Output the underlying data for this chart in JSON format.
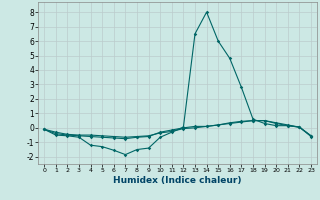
{
  "title": "",
  "xlabel": "Humidex (Indice chaleur)",
  "background_color": "#cce8e4",
  "grid_color": "#bbcccc",
  "line_color": "#006666",
  "xlim": [
    -0.5,
    23.5
  ],
  "ylim": [
    -2.5,
    8.7
  ],
  "yticks": [
    -2,
    -1,
    0,
    1,
    2,
    3,
    4,
    5,
    6,
    7,
    8
  ],
  "xticks": [
    0,
    1,
    2,
    3,
    4,
    5,
    6,
    7,
    8,
    9,
    10,
    11,
    12,
    13,
    14,
    15,
    16,
    17,
    18,
    19,
    20,
    21,
    22,
    23
  ],
  "series": [
    {
      "x": [
        0,
        1,
        2,
        3,
        4,
        5,
        6,
        7,
        8,
        9,
        10,
        11,
        12,
        13,
        14,
        15,
        16,
        17,
        18,
        19,
        20,
        21,
        22,
        23
      ],
      "y": [
        -0.1,
        -0.5,
        -0.55,
        -0.65,
        -1.2,
        -1.3,
        -1.55,
        -1.85,
        -1.5,
        -1.4,
        -0.65,
        -0.3,
        0.05,
        6.5,
        8.0,
        6.0,
        4.8,
        2.8,
        0.6,
        0.3,
        0.15,
        0.15,
        0.05,
        -0.55
      ]
    },
    {
      "x": [
        0,
        1,
        2,
        3,
        4,
        5,
        6,
        7,
        8,
        9,
        10,
        11,
        12,
        13,
        14,
        15,
        16,
        17,
        18,
        19,
        20,
        21,
        22,
        23
      ],
      "y": [
        -0.1,
        -0.3,
        -0.45,
        -0.5,
        -0.5,
        -0.55,
        -0.6,
        -0.65,
        -0.6,
        -0.55,
        -0.35,
        -0.25,
        -0.05,
        0.0,
        0.1,
        0.2,
        0.35,
        0.45,
        0.5,
        0.5,
        0.35,
        0.2,
        0.05,
        -0.55
      ]
    },
    {
      "x": [
        0,
        1,
        2,
        3,
        4,
        5,
        6,
        7,
        8,
        9,
        10,
        11,
        12,
        13,
        14,
        15,
        16,
        17,
        18,
        19,
        20,
        21,
        22,
        23
      ],
      "y": [
        -0.1,
        -0.4,
        -0.5,
        -0.55,
        -0.6,
        -0.65,
        -0.7,
        -0.75,
        -0.65,
        -0.6,
        -0.3,
        -0.15,
        0.0,
        0.1,
        0.1,
        0.2,
        0.3,
        0.4,
        0.5,
        0.5,
        0.3,
        0.15,
        0.05,
        -0.6
      ]
    }
  ]
}
